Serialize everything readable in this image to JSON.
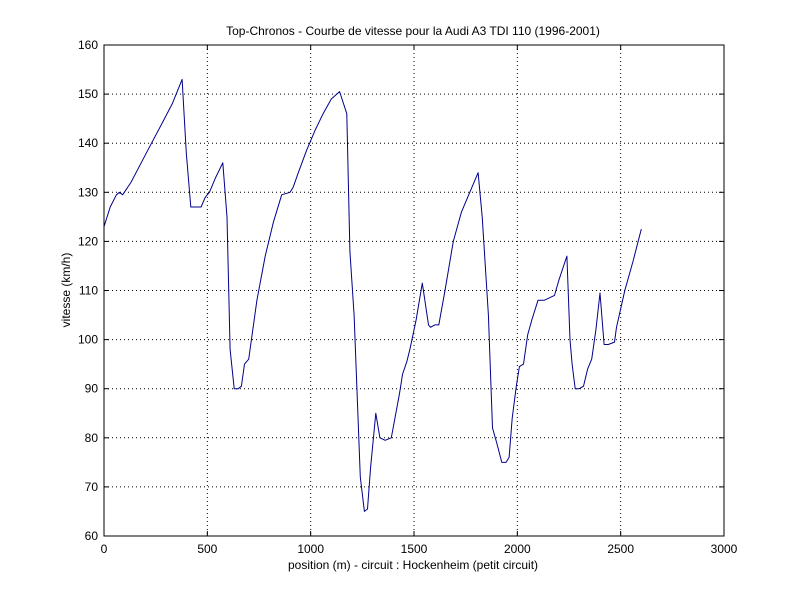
{
  "chart_data": {
    "type": "line",
    "title": "Top-Chronos - Courbe de vitesse pour la Audi A3 TDI 110 (1996-2001)",
    "xlabel": "position (m) - circuit : Hockenheim (petit circuit)",
    "ylabel": "vitesse (km/h)",
    "xlim": [
      0,
      3000
    ],
    "ylim": [
      60,
      160
    ],
    "xticks": [
      0,
      500,
      1000,
      1500,
      2000,
      2500,
      3000
    ],
    "yticks": [
      60,
      70,
      80,
      90,
      100,
      110,
      120,
      130,
      140,
      150,
      160
    ],
    "xtick_labels": [
      "0",
      "500",
      "1000",
      "1500",
      "2000",
      "2500",
      "3000"
    ],
    "ytick_labels": [
      "60",
      "70",
      "80",
      "90",
      "100",
      "110",
      "120",
      "130",
      "140",
      "150",
      "160"
    ],
    "grid": true,
    "colors": {
      "line": "#00008b",
      "grid": "#000000",
      "axes": "#000000",
      "background": "#ffffff"
    },
    "series": [
      {
        "x": [
          0,
          30,
          60,
          75,
          90,
          130,
          180,
          230,
          280,
          330,
          378,
          398,
          420,
          440,
          470,
          490,
          510,
          540,
          575,
          595,
          610,
          630,
          650,
          665,
          680,
          700,
          740,
          780,
          820,
          860,
          900,
          915,
          940,
          980,
          1020,
          1060,
          1100,
          1140,
          1175,
          1190,
          1210,
          1240,
          1260,
          1275,
          1290,
          1315,
          1335,
          1360,
          1390,
          1430,
          1445,
          1465,
          1480,
          1510,
          1540,
          1570,
          1580,
          1600,
          1620,
          1650,
          1690,
          1730,
          1770,
          1810,
          1830,
          1860,
          1880,
          1900,
          1925,
          1945,
          1960,
          1975,
          1995,
          2010,
          2030,
          2050,
          2070,
          2100,
          2130,
          2180,
          2200,
          2240,
          2255,
          2265,
          2280,
          2300,
          2320,
          2340,
          2360,
          2380,
          2400,
          2420,
          2440,
          2470,
          2480,
          2520,
          2560,
          2600
        ],
        "y": [
          123,
          127,
          129.5,
          130,
          129.5,
          132,
          136,
          140,
          144,
          148,
          153,
          138,
          127,
          127,
          127,
          129,
          130,
          133,
          136,
          125,
          98,
          90,
          90,
          90.5,
          95,
          96,
          108,
          117,
          124,
          129.5,
          130,
          131,
          134,
          138.5,
          142.5,
          146,
          149,
          150.5,
          146,
          118,
          105,
          72,
          65,
          65.5,
          74,
          85,
          80,
          79.5,
          80,
          89,
          93,
          95.5,
          98,
          104,
          111.5,
          103,
          102.5,
          103,
          103,
          110,
          120,
          126,
          130,
          134,
          125,
          105,
          82,
          79,
          75,
          75,
          76,
          84,
          90.5,
          94.5,
          95,
          101,
          104,
          108,
          108,
          109,
          112,
          117,
          100,
          95,
          90,
          90,
          90.5,
          94,
          96,
          102,
          109.5,
          99,
          99,
          99.5,
          102.5,
          110,
          116,
          122.5
        ]
      }
    ]
  }
}
